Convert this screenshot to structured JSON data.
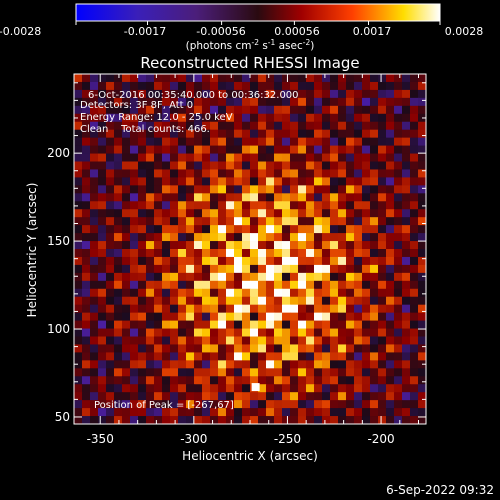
{
  "colorbar": {
    "tick_labels": [
      "-0.0028",
      "-0.0017",
      "-0.00056",
      "0.00056",
      "0.0017",
      "0.0028"
    ],
    "unit_main": "(photons cm",
    "unit_exp1": "-2",
    "unit_mid": " s",
    "unit_exp2": "-1",
    "unit_end": " asec",
    "unit_exp3": "-2",
    "unit_close": ")",
    "range": [
      -0.0028,
      0.0028
    ]
  },
  "title": "Reconstructed RHESSI Image",
  "annotations": {
    "line1": "6-Oct-2016 00:35:40.000 to 00:36:32.000",
    "line2": "Detectors: 3F 8F, Att 0",
    "line3": "Energy Range: 12.0 - 25.0 keV",
    "line4": "Clean    Total counts: 466.",
    "peak": "Position of Peak = [-267,67]"
  },
  "footer": {
    "timestamp": "6-Sep-2022 09:32"
  },
  "chart_data": {
    "type": "heatmap",
    "title": "Reconstructed RHESSI Image",
    "xlabel": "Heliocentric X (arcsec)",
    "ylabel": "Heliocentric Y (arcsec)",
    "xlim": [
      -364,
      -176
    ],
    "ylim": [
      46,
      245
    ],
    "x_ticks": [
      -350,
      -300,
      -250,
      -200
    ],
    "y_ticks": [
      50,
      100,
      150,
      200
    ],
    "x_tick_labels": [
      "-350",
      "-300",
      "-250",
      "-200"
    ],
    "y_tick_labels": [
      "50",
      "100",
      "150",
      "200"
    ],
    "peak_position": [
      -267,
      67
    ],
    "colormap": [
      "#0000ff",
      "#4b1e9e",
      "#1a0a1a",
      "#8c0000",
      "#e04000",
      "#ffcc00",
      "#ffffff"
    ],
    "value_range": [
      -0.0028,
      0.0028
    ]
  }
}
